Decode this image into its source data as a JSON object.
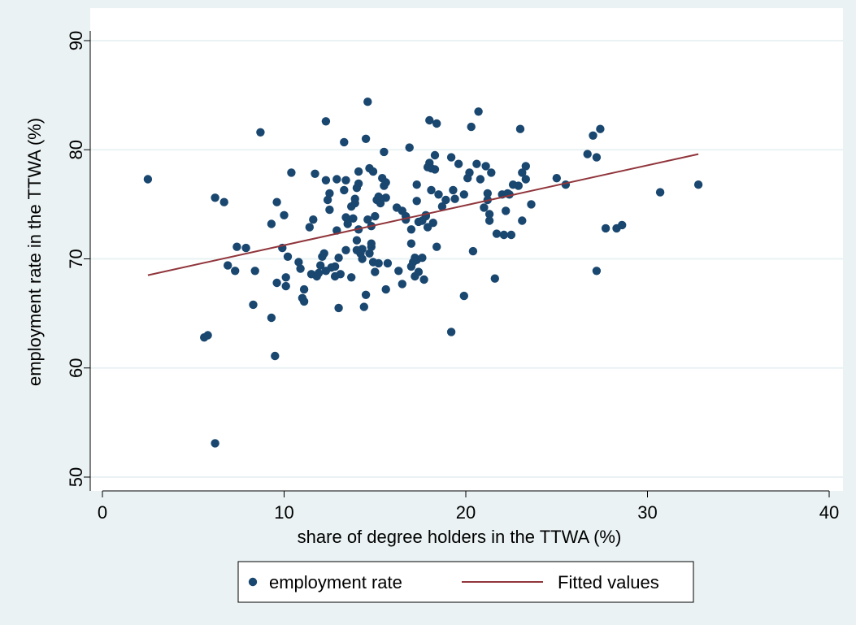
{
  "chart_data": {
    "type": "scatter",
    "title": "",
    "xlabel": "share of degree holders in the TTWA (%)",
    "ylabel": "employment rate in the TTWA (%)",
    "xlim": [
      0,
      40
    ],
    "ylim": [
      50,
      90
    ],
    "xticks": [
      0,
      10,
      20,
      30,
      40
    ],
    "yticks": [
      50,
      60,
      70,
      80,
      90
    ],
    "xtick_labels": [
      "0",
      "10",
      "20",
      "30",
      "40"
    ],
    "ytick_labels": [
      "50",
      "60",
      "70",
      "80",
      "90"
    ],
    "grid": "horizontal",
    "legend_position": "bottom",
    "colors": {
      "background": "#eaf2f3",
      "plot_area": "#ffffff",
      "gridline": "#eaf2f3",
      "markers": "#1a476f",
      "fit_line": "#90353b"
    },
    "series": [
      {
        "name": "employment rate",
        "kind": "scatter",
        "points": [
          [
            2.5,
            77.3
          ],
          [
            5.6,
            62.8
          ],
          [
            5.8,
            63.0
          ],
          [
            6.2,
            75.6
          ],
          [
            6.2,
            53.1
          ],
          [
            6.7,
            75.2
          ],
          [
            6.9,
            69.4
          ],
          [
            7.3,
            68.9
          ],
          [
            7.4,
            71.1
          ],
          [
            7.9,
            71.0
          ],
          [
            8.3,
            65.8
          ],
          [
            8.4,
            68.9
          ],
          [
            8.7,
            81.6
          ],
          [
            9.3,
            73.2
          ],
          [
            9.3,
            64.6
          ],
          [
            9.5,
            61.1
          ],
          [
            9.6,
            75.2
          ],
          [
            9.6,
            67.8
          ],
          [
            9.9,
            71.0
          ],
          [
            10.0,
            74.0
          ],
          [
            10.1,
            68.3
          ],
          [
            10.1,
            67.5
          ],
          [
            10.2,
            70.2
          ],
          [
            10.4,
            77.9
          ],
          [
            10.8,
            69.7
          ],
          [
            10.9,
            69.1
          ],
          [
            11.0,
            66.4
          ],
          [
            11.1,
            66.1
          ],
          [
            11.1,
            67.2
          ],
          [
            11.4,
            72.9
          ],
          [
            11.5,
            68.6
          ],
          [
            11.6,
            73.6
          ],
          [
            11.7,
            77.8
          ],
          [
            11.8,
            68.4
          ],
          [
            11.9,
            68.7
          ],
          [
            12.0,
            69.4
          ],
          [
            12.1,
            70.2
          ],
          [
            12.2,
            70.5
          ],
          [
            12.3,
            68.9
          ],
          [
            12.3,
            82.6
          ],
          [
            12.3,
            77.2
          ],
          [
            12.4,
            75.4
          ],
          [
            12.5,
            74.5
          ],
          [
            12.5,
            76.0
          ],
          [
            12.6,
            69.2
          ],
          [
            12.8,
            69.3
          ],
          [
            12.8,
            68.4
          ],
          [
            12.9,
            77.3
          ],
          [
            12.9,
            72.6
          ],
          [
            13.0,
            70.1
          ],
          [
            13.0,
            65.5
          ],
          [
            13.1,
            68.6
          ],
          [
            13.3,
            80.7
          ],
          [
            13.3,
            76.3
          ],
          [
            13.4,
            77.2
          ],
          [
            13.4,
            73.8
          ],
          [
            13.4,
            70.8
          ],
          [
            13.5,
            73.6
          ],
          [
            13.5,
            73.2
          ],
          [
            13.7,
            74.8
          ],
          [
            13.7,
            68.3
          ],
          [
            13.8,
            73.7
          ],
          [
            13.9,
            75.5
          ],
          [
            13.9,
            75.1
          ],
          [
            14.0,
            76.5
          ],
          [
            14.0,
            70.8
          ],
          [
            14.0,
            71.7
          ],
          [
            14.1,
            76.9
          ],
          [
            14.1,
            78.0
          ],
          [
            14.1,
            72.7
          ],
          [
            14.2,
            70.5
          ],
          [
            14.3,
            70.9
          ],
          [
            14.3,
            70.0
          ],
          [
            14.4,
            65.6
          ],
          [
            14.5,
            66.7
          ],
          [
            14.5,
            81.0
          ],
          [
            14.6,
            84.4
          ],
          [
            14.6,
            73.6
          ],
          [
            14.7,
            78.3
          ],
          [
            14.7,
            70.5
          ],
          [
            14.8,
            71.1
          ],
          [
            14.8,
            71.4
          ],
          [
            14.8,
            73.0
          ],
          [
            14.9,
            69.7
          ],
          [
            14.9,
            78.0
          ],
          [
            15.0,
            68.8
          ],
          [
            15.0,
            73.9
          ],
          [
            15.1,
            75.4
          ],
          [
            15.2,
            69.6
          ],
          [
            15.2,
            75.7
          ],
          [
            15.3,
            75.1
          ],
          [
            15.4,
            77.4
          ],
          [
            15.5,
            79.8
          ],
          [
            15.5,
            76.7
          ],
          [
            15.6,
            75.6
          ],
          [
            15.6,
            77.0
          ],
          [
            15.6,
            67.2
          ],
          [
            15.7,
            69.6
          ],
          [
            16.2,
            74.7
          ],
          [
            16.3,
            68.9
          ],
          [
            16.5,
            74.4
          ],
          [
            16.5,
            67.7
          ],
          [
            16.7,
            73.9
          ],
          [
            16.7,
            73.6
          ],
          [
            16.9,
            80.2
          ],
          [
            17.0,
            72.7
          ],
          [
            17.0,
            71.4
          ],
          [
            17.0,
            69.3
          ],
          [
            17.1,
            69.7
          ],
          [
            17.2,
            68.4
          ],
          [
            17.2,
            70.1
          ],
          [
            17.3,
            75.3
          ],
          [
            17.3,
            76.8
          ],
          [
            17.3,
            69.9
          ],
          [
            17.4,
            68.8
          ],
          [
            17.4,
            73.4
          ],
          [
            17.6,
            73.5
          ],
          [
            17.6,
            70.1
          ],
          [
            17.7,
            68.1
          ],
          [
            17.8,
            73.9
          ],
          [
            17.8,
            74.0
          ],
          [
            17.9,
            72.9
          ],
          [
            17.9,
            78.4
          ],
          [
            18.0,
            82.7
          ],
          [
            18.0,
            78.8
          ],
          [
            18.1,
            76.3
          ],
          [
            18.1,
            78.3
          ],
          [
            18.2,
            73.3
          ],
          [
            18.3,
            79.5
          ],
          [
            18.3,
            78.2
          ],
          [
            18.4,
            82.4
          ],
          [
            18.4,
            71.1
          ],
          [
            18.5,
            75.9
          ],
          [
            18.7,
            74.8
          ],
          [
            18.9,
            75.4
          ],
          [
            19.2,
            79.3
          ],
          [
            19.2,
            63.3
          ],
          [
            19.3,
            76.3
          ],
          [
            19.4,
            75.5
          ],
          [
            19.6,
            78.7
          ],
          [
            19.9,
            75.9
          ],
          [
            19.9,
            66.6
          ],
          [
            20.1,
            77.4
          ],
          [
            20.2,
            77.9
          ],
          [
            20.3,
            82.1
          ],
          [
            20.4,
            70.7
          ],
          [
            20.6,
            78.7
          ],
          [
            20.7,
            83.5
          ],
          [
            20.8,
            77.3
          ],
          [
            21.0,
            74.7
          ],
          [
            21.1,
            78.5
          ],
          [
            21.2,
            76.0
          ],
          [
            21.2,
            75.4
          ],
          [
            21.3,
            73.5
          ],
          [
            21.3,
            74.1
          ],
          [
            21.4,
            77.9
          ],
          [
            21.6,
            68.2
          ],
          [
            21.7,
            72.3
          ],
          [
            22.0,
            75.9
          ],
          [
            22.1,
            72.2
          ],
          [
            22.2,
            74.4
          ],
          [
            22.3,
            76.0
          ],
          [
            22.4,
            75.9
          ],
          [
            22.5,
            72.2
          ],
          [
            22.6,
            76.8
          ],
          [
            22.9,
            76.7
          ],
          [
            23.0,
            81.9
          ],
          [
            23.1,
            73.5
          ],
          [
            23.1,
            77.9
          ],
          [
            23.3,
            77.3
          ],
          [
            23.3,
            78.5
          ],
          [
            23.6,
            75.0
          ],
          [
            25.0,
            77.4
          ],
          [
            25.5,
            76.8
          ],
          [
            26.7,
            79.6
          ],
          [
            27.0,
            81.3
          ],
          [
            27.2,
            79.3
          ],
          [
            27.2,
            68.9
          ],
          [
            27.4,
            81.9
          ],
          [
            27.7,
            72.8
          ],
          [
            28.3,
            72.8
          ],
          [
            28.6,
            73.1
          ],
          [
            30.7,
            76.1
          ],
          [
            32.8,
            76.8
          ]
        ]
      },
      {
        "name": "Fitted values",
        "kind": "line",
        "points": [
          [
            2.5,
            68.5
          ],
          [
            32.8,
            79.6
          ]
        ]
      }
    ]
  },
  "legend": {
    "items": [
      {
        "label": "employment rate",
        "symbol": "marker"
      },
      {
        "label": "Fitted values",
        "symbol": "line"
      }
    ]
  }
}
